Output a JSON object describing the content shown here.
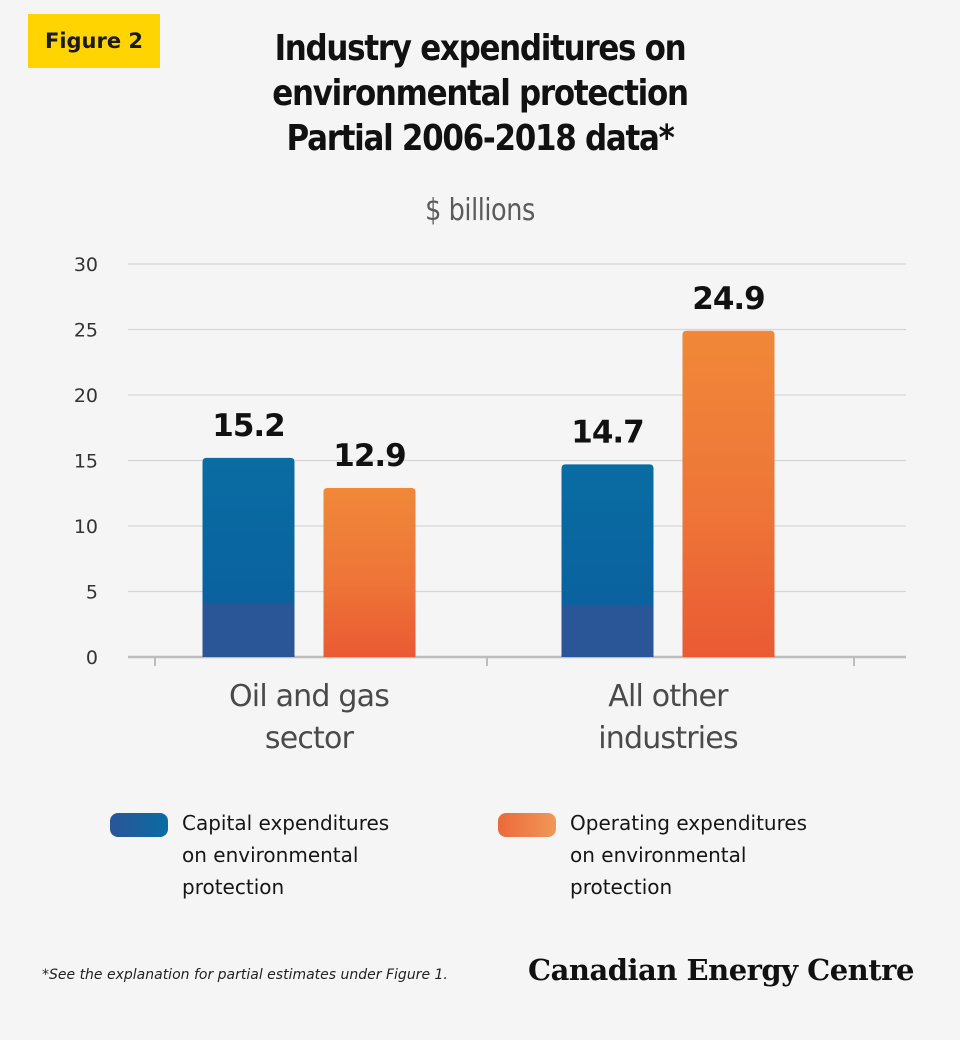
{
  "badge": "Figure 2",
  "title_lines": [
    "Industry expenditures on",
    "environmental protection",
    "Partial 2006-2018 data*"
  ],
  "subtitle": "$ billions",
  "chart_data": {
    "type": "bar",
    "title": "Industry expenditures on environmental protection Partial 2006-2018 data*",
    "ylabel": "$ billions",
    "xlabel": "",
    "ylim": [
      0,
      30
    ],
    "yticks": [
      0,
      5,
      10,
      15,
      20,
      25,
      30
    ],
    "grid": true,
    "categories": [
      [
        "Oil and gas",
        "sector"
      ],
      [
        "All other",
        "industries"
      ]
    ],
    "series": [
      {
        "name": "Capital expenditures on environmental protection",
        "values": [
          15.2,
          14.7
        ],
        "labels": [
          "15.2",
          "14.7"
        ],
        "color_top": "#0a6ca3",
        "color_bottom": "#2a5597"
      },
      {
        "name": "Operating expenditures on environmental protection",
        "values": [
          12.9,
          24.9
        ],
        "labels": [
          "12.9",
          "24.9"
        ],
        "color_top": "#f08838",
        "color_bottom": "#ea5a33"
      }
    ],
    "legend_position": "bottom"
  },
  "legend": {
    "capital": [
      "Capital expenditures",
      "on environmental",
      "protection"
    ],
    "operating": [
      "Operating expenditures",
      "on environmental",
      "protection"
    ]
  },
  "footnote": "*See the explanation for partial estimates under Figure 1.",
  "logo": "Canadian Energy Centre"
}
